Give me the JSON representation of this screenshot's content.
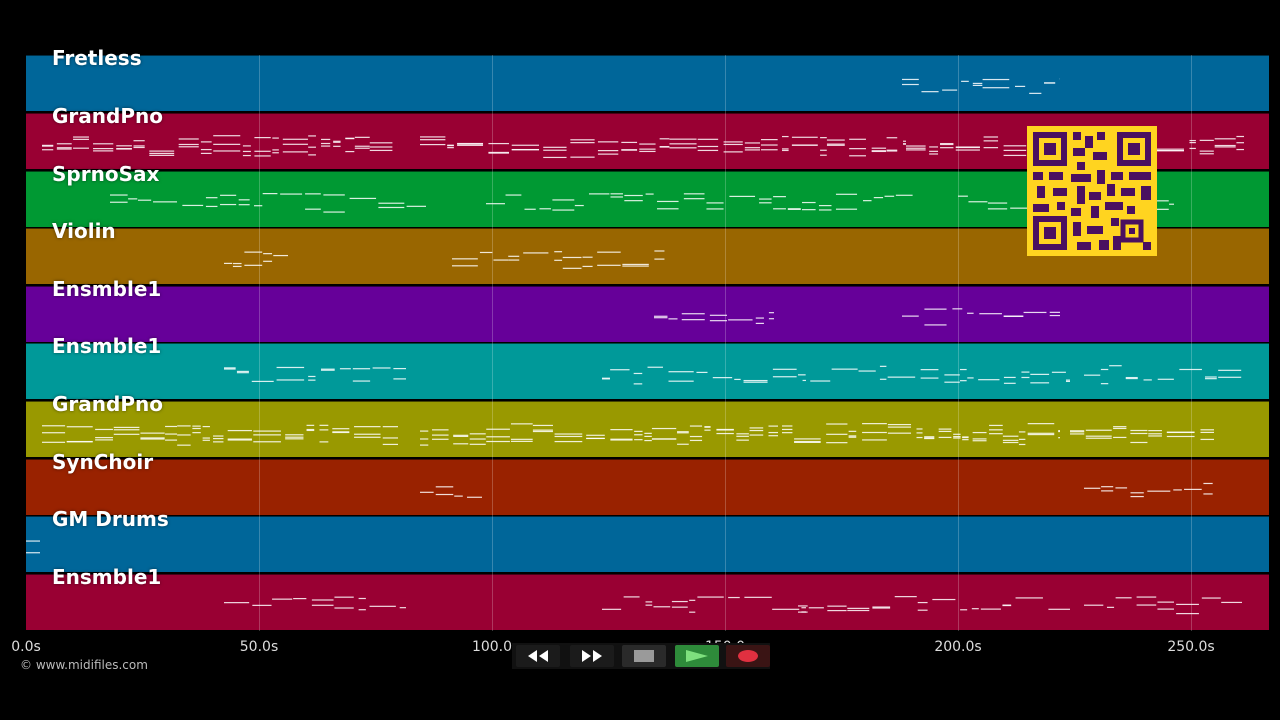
{
  "tracks": [
    {
      "name": "Fretless",
      "color": "#006699"
    },
    {
      "name": "GrandPno",
      "color": "#990033"
    },
    {
      "name": "SprnoSax",
      "color": "#009933"
    },
    {
      "name": "Violin",
      "color": "#996600"
    },
    {
      "name": "Ensmble1",
      "color": "#660099"
    },
    {
      "name": "Ensmble1",
      "color": "#009999"
    },
    {
      "name": "GrandPno",
      "color": "#999900"
    },
    {
      "name": "SynChoir",
      "color": "#992200"
    },
    {
      "name": "GM Drums",
      "color": "#006699"
    },
    {
      "name": "Ensmble1",
      "color": "#990033"
    }
  ],
  "time_axis": {
    "ticks": [
      "0.0s",
      "50.0s",
      "100.0",
      "150.0",
      "200.0s",
      "250.0s"
    ],
    "tick_seconds": [
      0,
      50,
      100,
      150,
      200,
      250
    ],
    "max_seconds": 266.5
  },
  "footer": {
    "copyright": "© www.midifiles.com"
  },
  "transport": {
    "rewind_icon": "rewind-icon",
    "fast_forward_icon": "fast-forward-icon",
    "stop_icon": "stop-icon",
    "play_icon": "play-icon",
    "record_icon": "record-icon",
    "play_color": "#2e8b3a",
    "record_color": "#e03040"
  },
  "qr_color": "#ffd420"
}
